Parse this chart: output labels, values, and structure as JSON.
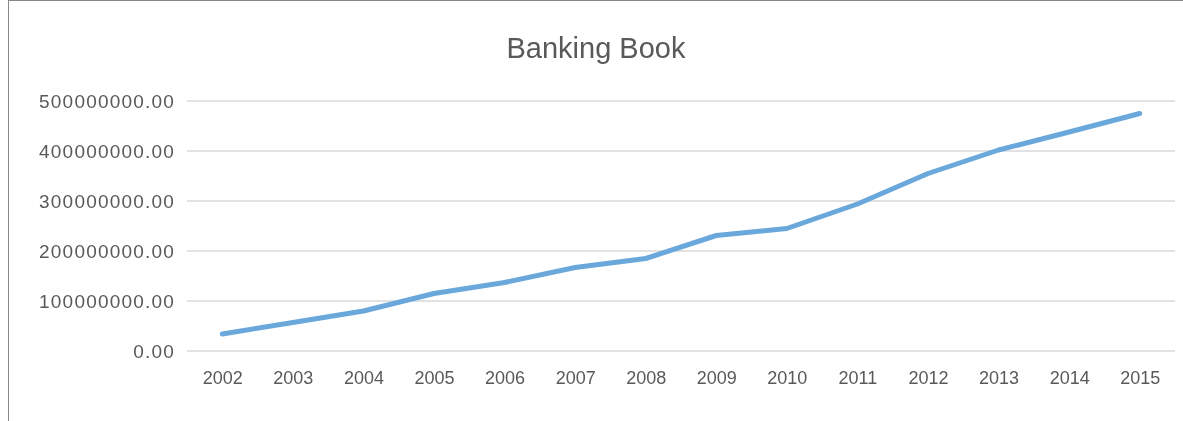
{
  "chart_data": {
    "type": "line",
    "title": "Banking Book",
    "categories": [
      "2002",
      "2003",
      "2004",
      "2005",
      "2006",
      "2007",
      "2008",
      "2009",
      "2010",
      "2011",
      "2012",
      "2013",
      "2014",
      "2015"
    ],
    "series": [
      {
        "color": "#6aa8dc",
        "values": [
          34000000,
          57000000,
          80000000,
          115000000,
          137000000,
          167000000,
          185000000,
          231000000,
          245000000,
          294000000,
          355000000,
          402000000,
          438000000,
          475000000
        ]
      }
    ],
    "ylim": [
      0,
      500000000
    ],
    "yticks": [
      {
        "value": 0,
        "label": "0.00"
      },
      {
        "value": 100000000,
        "label": "100000000.00"
      },
      {
        "value": 200000000,
        "label": "200000000.00"
      },
      {
        "value": 300000000,
        "label": "300000000.00"
      },
      {
        "value": 400000000,
        "label": "400000000.00"
      },
      {
        "value": 500000000,
        "label": "500000000.00"
      }
    ],
    "grid": "y",
    "marker": "none",
    "line_style": "solid"
  }
}
